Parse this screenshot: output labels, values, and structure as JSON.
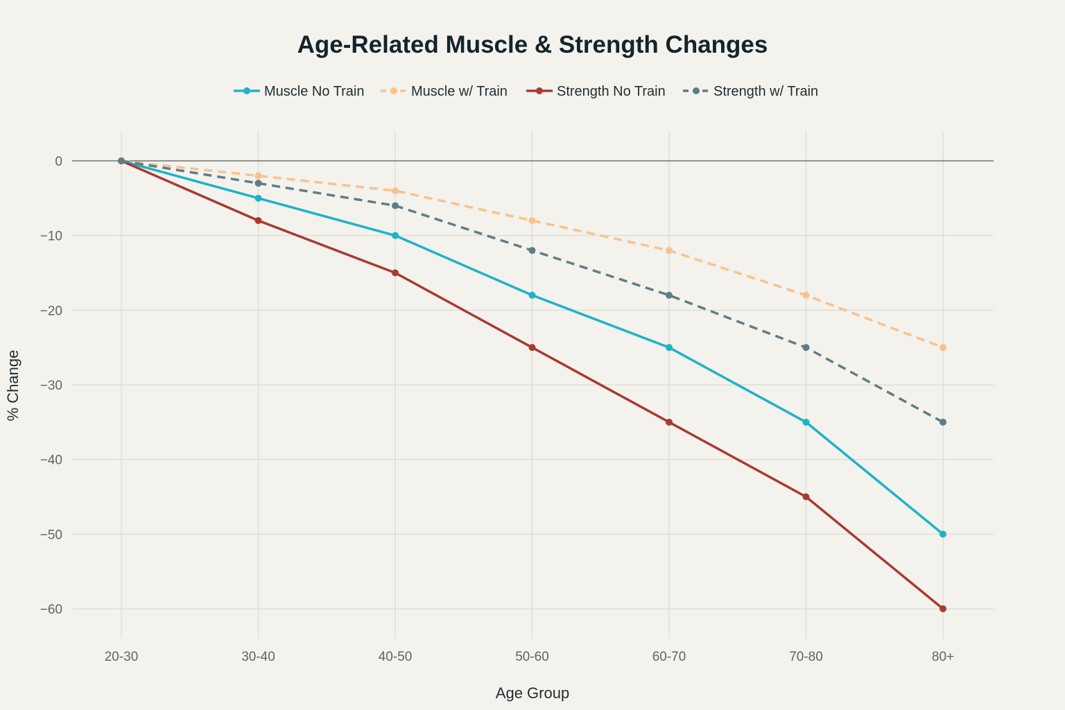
{
  "chart_data": {
    "type": "line",
    "title": "Age-Related Muscle & Strength Changes",
    "xlabel": "Age Group",
    "ylabel": "% Change",
    "categories": [
      "20-30",
      "30-40",
      "40-50",
      "50-60",
      "60-70",
      "70-80",
      "80+"
    ],
    "ylim": [
      -64,
      4
    ],
    "yticks": [
      0,
      -10,
      -20,
      -30,
      -40,
      -50,
      -60
    ],
    "ytick_labels": [
      "0",
      "−10",
      "−20",
      "−30",
      "−40",
      "−50",
      "−60"
    ],
    "grid": true,
    "legend_position": "top-center",
    "series": [
      {
        "name": "Muscle No Train",
        "color": "#1fb2c8",
        "dash": "solid",
        "values": [
          0,
          -5,
          -10,
          -18,
          -25,
          -35,
          -50
        ]
      },
      {
        "name": "Muscle w/ Train",
        "color": "#f9c28d",
        "dash": "dashed",
        "values": [
          0,
          -2,
          -4,
          -8,
          -12,
          -18,
          -25
        ]
      },
      {
        "name": "Strength No Train",
        "color": "#a83a34",
        "dash": "solid",
        "values": [
          0,
          -8,
          -15,
          -25,
          -35,
          -45,
          -60
        ]
      },
      {
        "name": "Strength w/ Train",
        "color": "#5e7d88",
        "dash": "dashed",
        "values": [
          0,
          -3,
          -6,
          -12,
          -18,
          -25,
          -35
        ]
      }
    ]
  }
}
